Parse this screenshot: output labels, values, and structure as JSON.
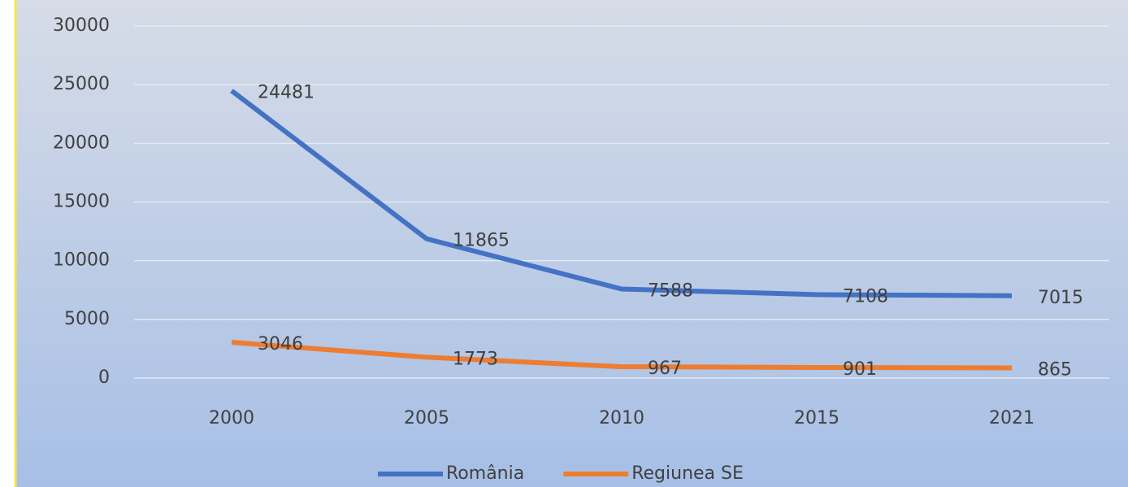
{
  "chart_data": {
    "type": "line",
    "categories": [
      "2000",
      "2005",
      "2010",
      "2015",
      "2021"
    ],
    "series": [
      {
        "name": "România",
        "color": "#4472c4",
        "values": [
          24481,
          11865,
          7588,
          7108,
          7015
        ]
      },
      {
        "name": "Regiunea SE",
        "color": "#ed7d31",
        "values": [
          3046,
          1773,
          967,
          901,
          865
        ]
      }
    ],
    "ylim": [
      0,
      30000
    ],
    "yticks": [
      0,
      5000,
      10000,
      15000,
      20000,
      25000,
      30000
    ],
    "grid": true,
    "legend": "bottom",
    "data_labels": true
  }
}
